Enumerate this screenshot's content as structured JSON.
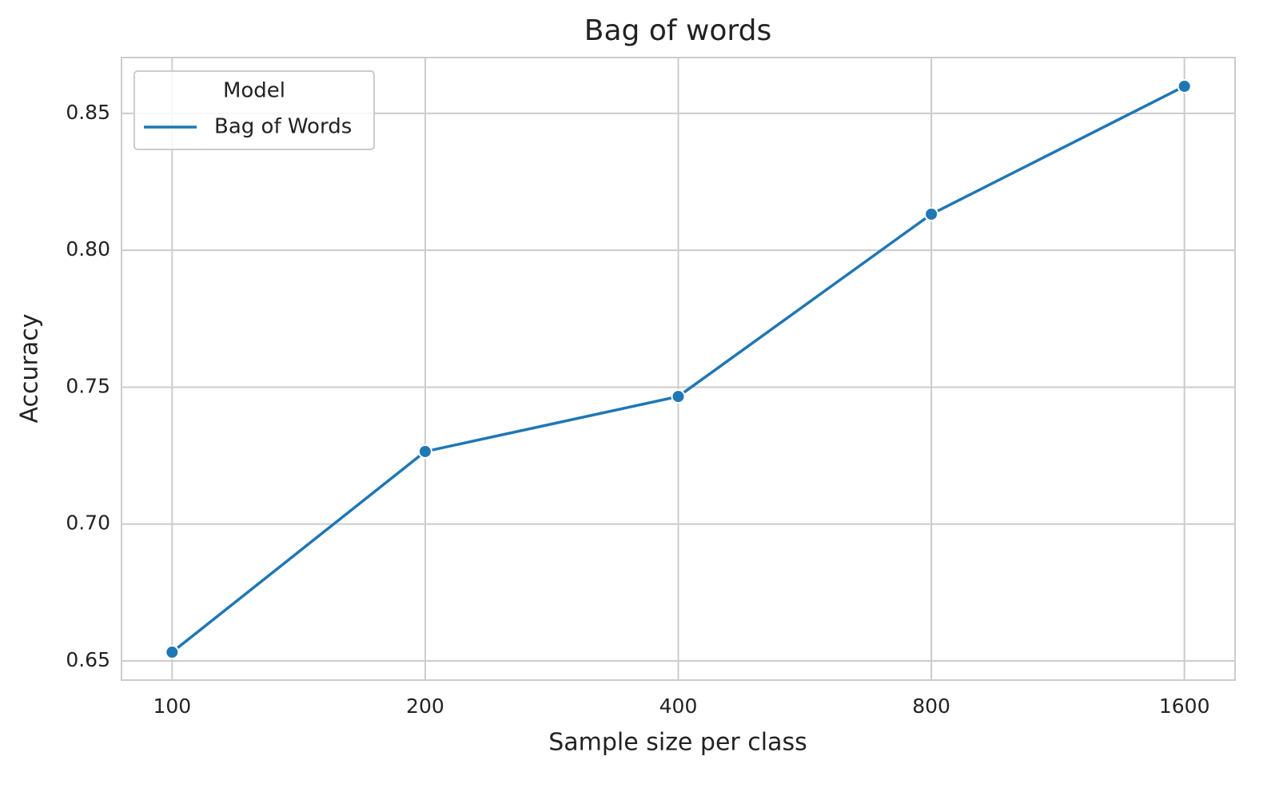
{
  "chart_data": {
    "type": "line",
    "title": "Bag of words",
    "x_label": "Sample size per class",
    "y_label": "Accuracy",
    "categories": [
      "100",
      "200",
      "400",
      "800",
      "1600"
    ],
    "series": [
      {
        "name": "Bag of Words",
        "color": "#1f77b4",
        "values": [
          0.6532,
          0.7265,
          0.7466,
          0.8132,
          0.8599
        ]
      }
    ],
    "ylim": [
      0.643,
      0.8704
    ],
    "yticks": [
      0.65,
      {
        "value": 0.7,
        "label": "0.70"
      },
      0.75,
      {
        "value": 0.8,
        "label": "0.80"
      },
      0.85
    ],
    "grid": true,
    "legend_title": "Model",
    "legend_position": "upper left"
  }
}
